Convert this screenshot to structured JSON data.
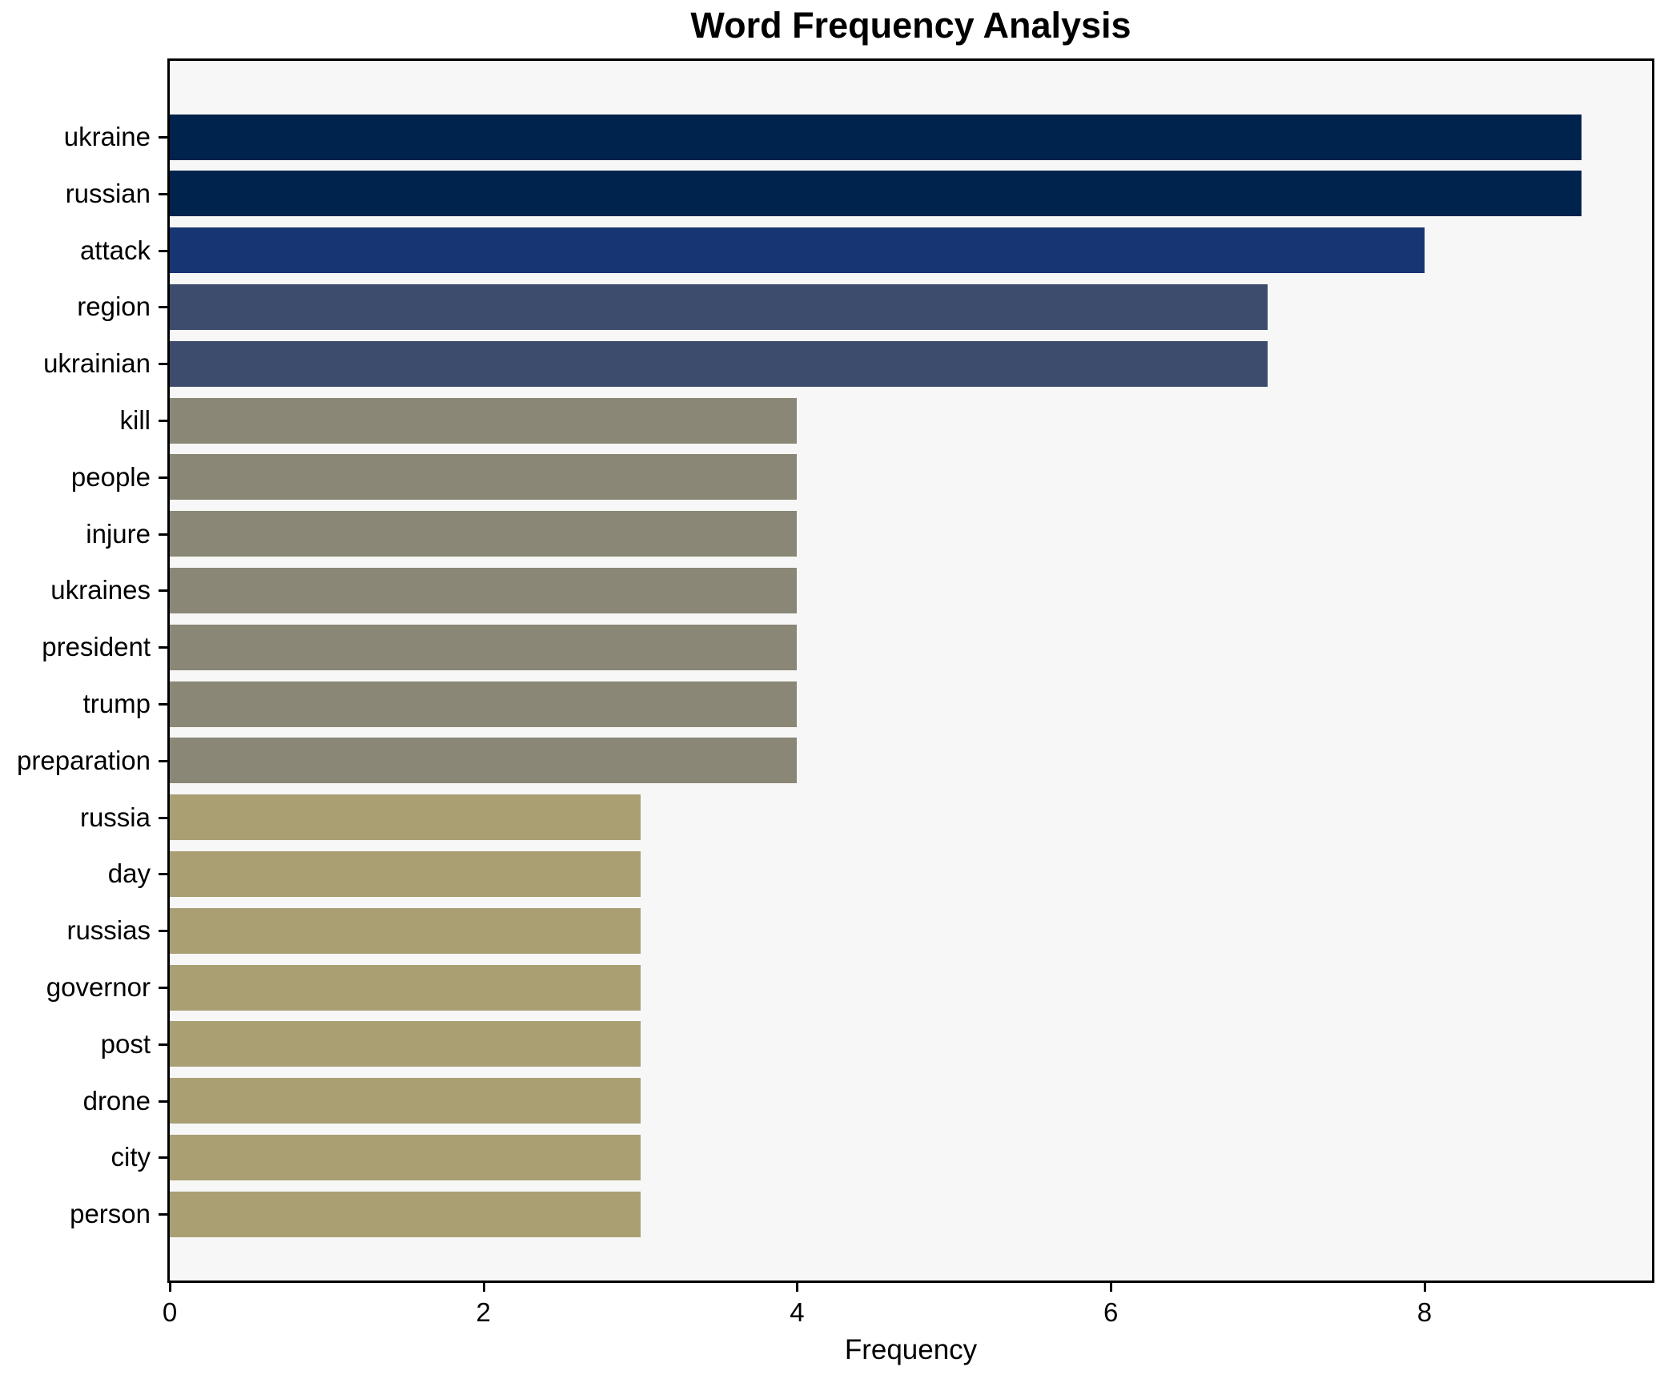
{
  "page": {
    "background": "#ffffff"
  },
  "chart_data": {
    "type": "bar",
    "orientation": "horizontal",
    "title": "Word Frequency Analysis",
    "xlabel": "Frequency",
    "ylabel": "",
    "categories": [
      "ukraine",
      "russian",
      "attack",
      "region",
      "ukrainian",
      "kill",
      "people",
      "injure",
      "ukraines",
      "president",
      "trump",
      "preparation",
      "russia",
      "day",
      "russias",
      "governor",
      "post",
      "drone",
      "city",
      "person"
    ],
    "values": [
      9,
      9,
      8,
      7,
      7,
      4,
      4,
      4,
      4,
      4,
      4,
      4,
      3,
      3,
      3,
      3,
      3,
      3,
      3,
      3
    ],
    "colors": [
      "#00234d",
      "#00234d",
      "#173572",
      "#3d4b6d",
      "#3d4b6d",
      "#8a8776",
      "#8a8776",
      "#8a8776",
      "#8a8776",
      "#8a8776",
      "#8a8776",
      "#8a8776",
      "#a99f73",
      "#a99f73",
      "#a99f73",
      "#a99f73",
      "#a99f73",
      "#a99f73",
      "#a99f73",
      "#a99f73"
    ],
    "xticks": [
      0,
      2,
      4,
      6,
      8
    ],
    "xlim": [
      0,
      9.45
    ],
    "grid": false,
    "legend": null,
    "plot_background": "#f7f7f7",
    "spine_color": "#000000",
    "text_color": "#000000"
  }
}
